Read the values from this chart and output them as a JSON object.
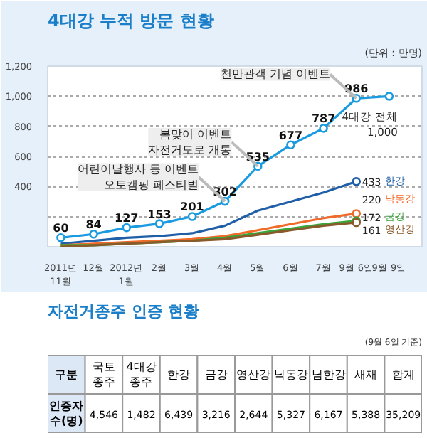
{
  "chart_data": [
    {
      "type": "line",
      "title": "4대강 누적 방문 현황",
      "subtitle": "(단위 : 만명)",
      "categories": [
        "2011년\n11월",
        "12월",
        "2012년\n1월",
        "2월",
        "3월",
        "4월",
        "5월",
        "6월",
        "7월",
        "9월 6일",
        "9월 9일"
      ],
      "ylim": [
        0,
        1200
      ],
      "yticks": [
        {
          "value": 200,
          "label": null
        },
        {
          "value": 400,
          "label": "400"
        },
        {
          "value": 600,
          "label": "600"
        },
        {
          "value": 800,
          "label": "800"
        },
        {
          "value": 1000,
          "label": "1,000"
        },
        {
          "value": 1200,
          "label": "1,200"
        }
      ],
      "grid": "y",
      "series": [
        {
          "name": "4대강 전체",
          "color": "#1a9be0",
          "marker": "circle",
          "values": [
            60,
            84,
            127,
            153,
            201,
            302,
            535,
            677,
            787,
            986,
            1000
          ],
          "value_labels": [
            "60",
            "84",
            "127",
            "153",
            "201",
            "302",
            "535",
            "677",
            "787",
            "986",
            "1,000"
          ]
        },
        {
          "name": "한강",
          "color": "#1f5fa8",
          "values": [
            20,
            40,
            60,
            70,
            90,
            140,
            240,
            300,
            360,
            433,
            null
          ],
          "value_labels": [
            null,
            null,
            null,
            null,
            null,
            null,
            null,
            null,
            null,
            "433",
            null
          ]
        },
        {
          "name": "낙동강",
          "color": "#f06a2a",
          "values": [
            10,
            20,
            30,
            40,
            50,
            70,
            110,
            150,
            190,
            220,
            null
          ],
          "value_labels": [
            null,
            null,
            null,
            null,
            null,
            null,
            null,
            null,
            null,
            "220",
            null
          ]
        },
        {
          "name": "금강",
          "color": "#3aa53a",
          "values": [
            10,
            10,
            20,
            30,
            40,
            60,
            90,
            120,
            150,
            172,
            null
          ],
          "value_labels": [
            null,
            null,
            null,
            null,
            null,
            null,
            null,
            null,
            null,
            "172",
            null
          ]
        },
        {
          "name": "영산강",
          "color": "#8b5a2b",
          "values": [
            0,
            10,
            20,
            30,
            40,
            50,
            80,
            110,
            140,
            161,
            null
          ],
          "value_labels": [
            null,
            null,
            null,
            null,
            null,
            null,
            null,
            null,
            null,
            "161",
            null
          ]
        }
      ],
      "annotations": [
        {
          "text": "천만관객 기념 이벤트",
          "x": "9월 6일",
          "y": 986
        },
        {
          "text": "봄맞이 이벤트\n자전거도로 개통",
          "x": "5월",
          "y": 535
        },
        {
          "text": "어린이날행사 등 이벤트\n오토캠핑 페스티벌",
          "x": "4월",
          "y": 302
        }
      ]
    },
    {
      "type": "other",
      "title": "자전거종주 인증 현황",
      "subtitle": "(9월 6일 기준)",
      "xlabel": "구분",
      "ylabel": "인증자\n수(명)",
      "categories": [
        "국토\n종주",
        "4대강\n종주",
        "한강",
        "금강",
        "영산강",
        "낙동강",
        "남한강",
        "새재",
        "합계"
      ],
      "value_labels": [
        "4,546",
        "1,482",
        "6,439",
        "3,216",
        "2,644",
        "5,327",
        "6,167",
        "5,388",
        "35,209"
      ]
    }
  ]
}
